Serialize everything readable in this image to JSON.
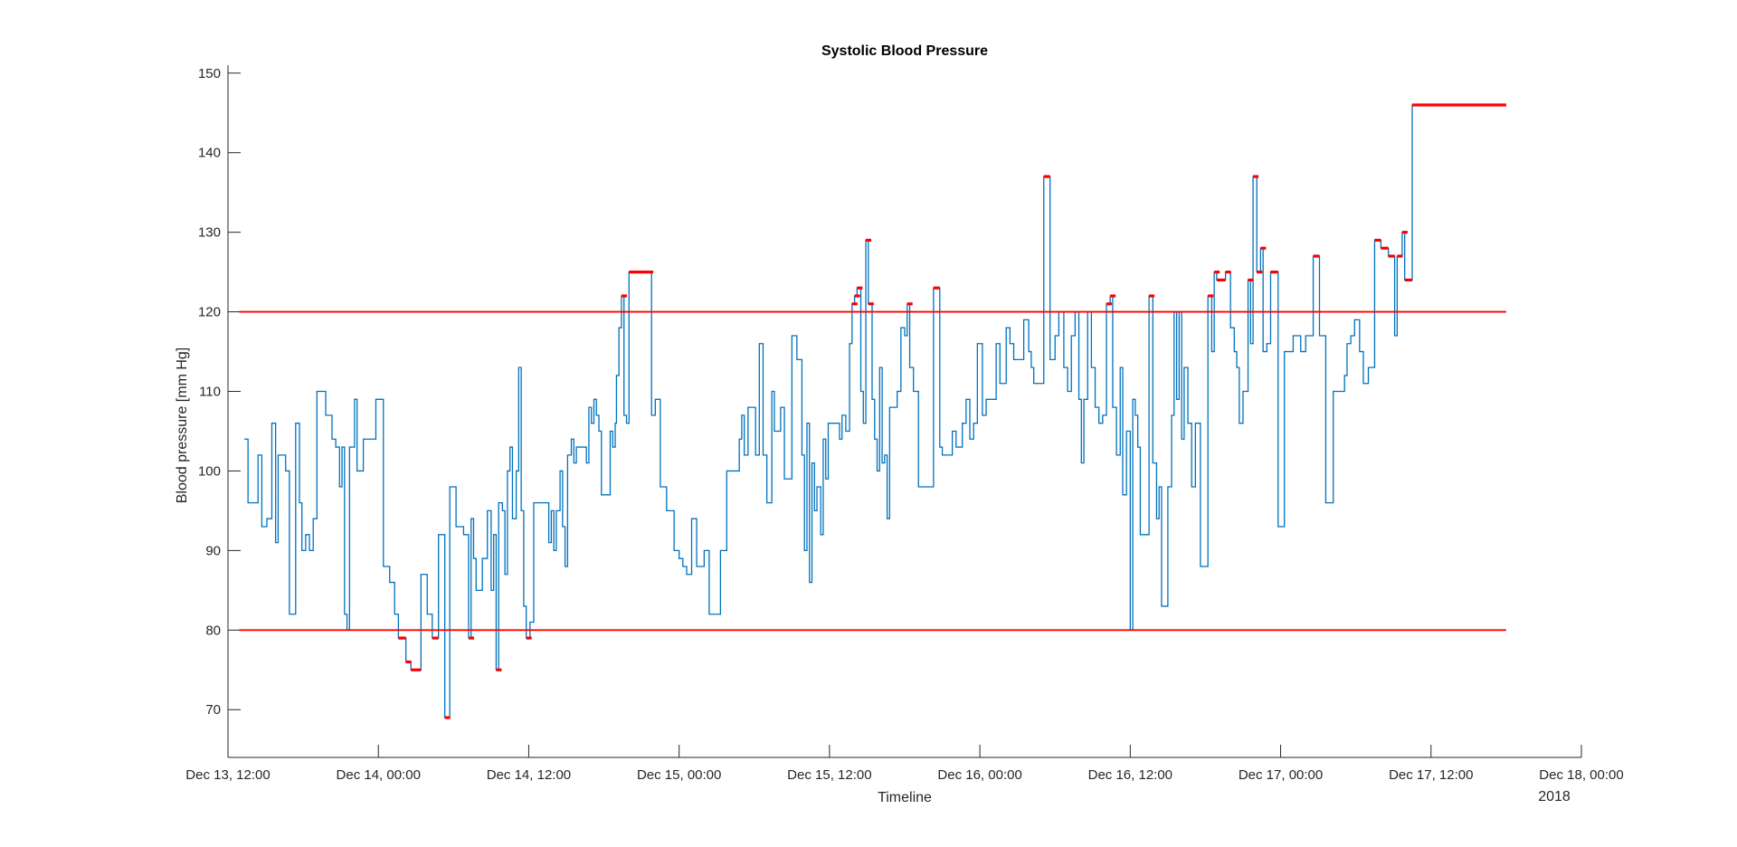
{
  "chart_data": {
    "type": "line",
    "title": "Systolic Blood Pressure",
    "xlabel": "Timeline",
    "ylabel": "Blood pressure [mm Hg]",
    "x_secondary_label": "2018",
    "ylim": [
      64,
      151
    ],
    "xlim_hours_since_dec13_12": [
      0,
      108
    ],
    "x_ticks": [
      {
        "h": 0,
        "label": "Dec 13, 12:00"
      },
      {
        "h": 12,
        "label": "Dec 14, 00:00"
      },
      {
        "h": 24,
        "label": "Dec 14, 12:00"
      },
      {
        "h": 36,
        "label": "Dec 15, 00:00"
      },
      {
        "h": 48,
        "label": "Dec 15, 12:00"
      },
      {
        "h": 60,
        "label": "Dec 16, 00:00"
      },
      {
        "h": 72,
        "label": "Dec 16, 12:00"
      },
      {
        "h": 84,
        "label": "Dec 17, 00:00"
      },
      {
        "h": 96,
        "label": "Dec 17, 12:00"
      },
      {
        "h": 108,
        "label": "Dec 18, 00:00"
      }
    ],
    "y_ticks": [
      70,
      80,
      90,
      100,
      110,
      120,
      130,
      140,
      150
    ],
    "thresholds": [
      {
        "name": "upper",
        "value": 120,
        "color": "#ff0000"
      },
      {
        "name": "lower",
        "value": 80,
        "color": "#ff0000"
      }
    ],
    "series": [
      {
        "color": "#0072bd",
        "step": true,
        "points": [
          [
            1.3,
            104
          ],
          [
            1.6,
            96
          ],
          [
            2.4,
            102
          ],
          [
            2.7,
            93
          ],
          [
            3.1,
            94
          ],
          [
            3.5,
            106
          ],
          [
            3.8,
            91
          ],
          [
            4.0,
            102
          ],
          [
            4.6,
            100
          ],
          [
            4.9,
            82
          ],
          [
            5.4,
            106
          ],
          [
            5.7,
            96
          ],
          [
            5.9,
            90
          ],
          [
            6.2,
            92
          ],
          [
            6.5,
            90
          ],
          [
            6.8,
            94
          ],
          [
            7.1,
            110
          ],
          [
            7.8,
            107
          ],
          [
            8.3,
            104
          ],
          [
            8.6,
            103
          ],
          [
            8.9,
            98
          ],
          [
            9.1,
            103
          ],
          [
            9.3,
            82
          ],
          [
            9.5,
            80
          ],
          [
            9.7,
            103
          ],
          [
            10.1,
            109
          ],
          [
            10.3,
            100
          ],
          [
            10.8,
            104
          ],
          [
            11.6,
            104
          ],
          [
            11.8,
            109
          ],
          [
            12.4,
            88
          ],
          [
            12.9,
            86
          ],
          [
            13.3,
            82
          ],
          [
            13.6,
            79
          ],
          [
            14.2,
            76
          ],
          [
            14.6,
            75
          ],
          [
            15.4,
            87
          ],
          [
            15.9,
            82
          ],
          [
            16.3,
            79
          ],
          [
            16.8,
            92
          ],
          [
            17.3,
            69
          ],
          [
            17.7,
            98
          ],
          [
            18.2,
            93
          ],
          [
            18.8,
            92
          ],
          [
            19.2,
            79
          ],
          [
            19.4,
            94
          ],
          [
            19.6,
            89
          ],
          [
            19.8,
            85
          ],
          [
            20.3,
            89
          ],
          [
            20.7,
            95
          ],
          [
            21.0,
            85
          ],
          [
            21.2,
            92
          ],
          [
            21.4,
            75
          ],
          [
            21.6,
            96
          ],
          [
            21.9,
            95
          ],
          [
            22.1,
            87
          ],
          [
            22.3,
            100
          ],
          [
            22.5,
            103
          ],
          [
            22.7,
            94
          ],
          [
            23.0,
            100
          ],
          [
            23.2,
            113
          ],
          [
            23.4,
            95
          ],
          [
            23.6,
            83
          ],
          [
            23.8,
            79
          ],
          [
            24.1,
            81
          ],
          [
            24.4,
            96
          ],
          [
            25.6,
            91
          ],
          [
            25.8,
            95
          ],
          [
            26.0,
            90
          ],
          [
            26.2,
            95
          ],
          [
            26.5,
            100
          ],
          [
            26.7,
            93
          ],
          [
            26.9,
            88
          ],
          [
            27.1,
            102
          ],
          [
            27.4,
            104
          ],
          [
            27.6,
            101
          ],
          [
            27.8,
            103
          ],
          [
            28.6,
            101
          ],
          [
            28.8,
            108
          ],
          [
            29.0,
            106
          ],
          [
            29.2,
            109
          ],
          [
            29.4,
            107
          ],
          [
            29.6,
            105
          ],
          [
            29.8,
            97
          ],
          [
            30.5,
            105
          ],
          [
            30.7,
            103
          ],
          [
            30.9,
            106
          ],
          [
            31.0,
            112
          ],
          [
            31.2,
            118
          ],
          [
            31.4,
            122
          ],
          [
            31.6,
            107
          ],
          [
            31.8,
            106
          ],
          [
            32.0,
            125
          ],
          [
            33.5,
            125
          ],
          [
            33.8,
            107
          ],
          [
            34.1,
            109
          ],
          [
            34.5,
            98
          ],
          [
            35.0,
            95
          ],
          [
            35.6,
            90
          ],
          [
            36.0,
            89
          ],
          [
            36.3,
            88
          ],
          [
            36.6,
            87
          ],
          [
            37.0,
            94
          ],
          [
            37.4,
            88
          ],
          [
            38.0,
            90
          ],
          [
            38.4,
            82
          ],
          [
            39.3,
            90
          ],
          [
            39.8,
            100
          ],
          [
            40.8,
            104
          ],
          [
            41.0,
            107
          ],
          [
            41.2,
            102
          ],
          [
            41.5,
            108
          ],
          [
            42.1,
            102
          ],
          [
            42.4,
            116
          ],
          [
            42.7,
            102
          ],
          [
            43.0,
            96
          ],
          [
            43.4,
            110
          ],
          [
            43.6,
            105
          ],
          [
            44.1,
            108
          ],
          [
            44.4,
            99
          ],
          [
            45.0,
            117
          ],
          [
            45.4,
            114
          ],
          [
            45.8,
            102
          ],
          [
            46.0,
            90
          ],
          [
            46.2,
            106
          ],
          [
            46.4,
            86
          ],
          [
            46.6,
            101
          ],
          [
            46.8,
            95
          ],
          [
            47.0,
            98
          ],
          [
            47.3,
            92
          ],
          [
            47.5,
            104
          ],
          [
            47.7,
            99
          ],
          [
            47.9,
            106
          ],
          [
            48.5,
            106
          ],
          [
            48.8,
            104
          ],
          [
            49.0,
            107
          ],
          [
            49.3,
            105
          ],
          [
            49.6,
            116
          ],
          [
            49.8,
            121
          ],
          [
            50.0,
            122
          ],
          [
            50.2,
            123
          ],
          [
            50.5,
            110
          ],
          [
            50.7,
            106
          ],
          [
            50.9,
            129
          ],
          [
            51.1,
            121
          ],
          [
            51.4,
            109
          ],
          [
            51.6,
            104
          ],
          [
            51.8,
            100
          ],
          [
            52.0,
            113
          ],
          [
            52.2,
            101
          ],
          [
            52.4,
            102
          ],
          [
            52.6,
            94
          ],
          [
            52.8,
            108
          ],
          [
            53.4,
            110
          ],
          [
            53.7,
            118
          ],
          [
            54.0,
            117
          ],
          [
            54.2,
            121
          ],
          [
            54.4,
            113
          ],
          [
            54.7,
            110
          ],
          [
            55.1,
            98
          ],
          [
            56.0,
            98
          ],
          [
            56.3,
            123
          ],
          [
            56.8,
            103
          ],
          [
            57.0,
            102
          ],
          [
            57.8,
            105
          ],
          [
            58.1,
            103
          ],
          [
            58.6,
            106
          ],
          [
            58.9,
            109
          ],
          [
            59.2,
            104
          ],
          [
            59.5,
            106
          ],
          [
            59.8,
            116
          ],
          [
            60.2,
            107
          ],
          [
            60.5,
            109
          ],
          [
            61.0,
            109
          ],
          [
            61.3,
            116
          ],
          [
            61.6,
            111
          ],
          [
            62.1,
            118
          ],
          [
            62.4,
            116
          ],
          [
            62.7,
            114
          ],
          [
            63.2,
            114
          ],
          [
            63.5,
            119
          ],
          [
            63.9,
            115
          ],
          [
            64.1,
            113
          ],
          [
            64.3,
            111
          ],
          [
            65.1,
            137
          ],
          [
            65.6,
            114
          ],
          [
            66.0,
            117
          ],
          [
            66.3,
            120
          ],
          [
            66.7,
            113
          ],
          [
            67.0,
            110
          ],
          [
            67.3,
            117
          ],
          [
            67.6,
            120
          ],
          [
            67.9,
            109
          ],
          [
            68.1,
            101
          ],
          [
            68.3,
            109
          ],
          [
            68.6,
            120
          ],
          [
            68.9,
            113
          ],
          [
            69.2,
            108
          ],
          [
            69.5,
            106
          ],
          [
            69.8,
            107
          ],
          [
            70.1,
            121
          ],
          [
            70.4,
            122
          ],
          [
            70.6,
            108
          ],
          [
            70.9,
            102
          ],
          [
            71.2,
            113
          ],
          [
            71.4,
            97
          ],
          [
            71.7,
            105
          ],
          [
            72.0,
            80
          ],
          [
            72.2,
            109
          ],
          [
            72.4,
            107
          ],
          [
            72.6,
            103
          ],
          [
            72.8,
            92
          ],
          [
            73.5,
            122
          ],
          [
            73.8,
            101
          ],
          [
            74.1,
            94
          ],
          [
            74.3,
            98
          ],
          [
            74.5,
            83
          ],
          [
            75.0,
            98
          ],
          [
            75.3,
            107
          ],
          [
            75.5,
            120
          ],
          [
            75.7,
            109
          ],
          [
            75.9,
            120
          ],
          [
            76.1,
            104
          ],
          [
            76.3,
            113
          ],
          [
            76.6,
            106
          ],
          [
            76.9,
            98
          ],
          [
            77.2,
            106
          ],
          [
            77.6,
            88
          ],
          [
            78.2,
            122
          ],
          [
            78.5,
            115
          ],
          [
            78.7,
            125
          ],
          [
            78.9,
            124
          ],
          [
            79.6,
            125
          ],
          [
            80.0,
            118
          ],
          [
            80.3,
            115
          ],
          [
            80.5,
            113
          ],
          [
            80.7,
            106
          ],
          [
            81.0,
            110
          ],
          [
            81.4,
            124
          ],
          [
            81.6,
            116
          ],
          [
            81.8,
            137
          ],
          [
            82.1,
            125
          ],
          [
            82.4,
            128
          ],
          [
            82.6,
            115
          ],
          [
            82.9,
            116
          ],
          [
            83.2,
            125
          ],
          [
            83.8,
            93
          ],
          [
            84.3,
            115
          ],
          [
            84.7,
            115
          ],
          [
            85.0,
            117
          ],
          [
            85.6,
            115
          ],
          [
            86.0,
            117
          ],
          [
            86.3,
            117
          ],
          [
            86.6,
            127
          ],
          [
            87.1,
            117
          ],
          [
            87.6,
            96
          ],
          [
            88.2,
            110
          ],
          [
            88.9,
            110
          ],
          [
            89.1,
            112
          ],
          [
            89.3,
            116
          ],
          [
            89.6,
            117
          ],
          [
            89.9,
            119
          ],
          [
            90.3,
            115
          ],
          [
            90.6,
            111
          ],
          [
            91.0,
            113
          ],
          [
            91.5,
            129
          ],
          [
            92.0,
            128
          ],
          [
            92.6,
            127
          ],
          [
            93.1,
            117
          ],
          [
            93.3,
            127
          ],
          [
            93.7,
            130
          ],
          [
            93.9,
            124
          ],
          [
            94.5,
            146
          ],
          [
            102.0,
            146
          ]
        ]
      }
    ],
    "highlight_color": "#ff0000",
    "highlight_rule": "steps above 120 or below 80 drawn as thick red segments"
  }
}
